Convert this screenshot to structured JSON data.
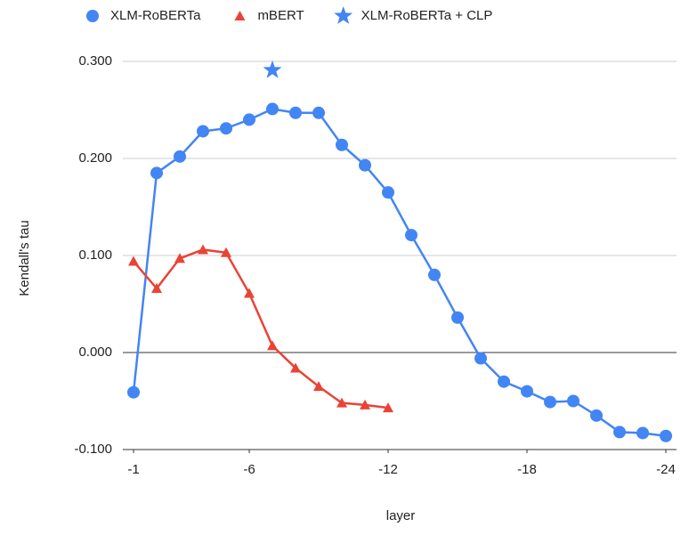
{
  "chart_data": {
    "type": "line",
    "legend": "top",
    "xlabel": "layer",
    "ylabel": "Kendall's tau",
    "xlim": [
      -1,
      -24
    ],
    "xticks": [
      -1,
      -6,
      -12,
      -18,
      -24
    ],
    "ylim": [
      -0.1,
      0.3
    ],
    "yticks": [
      {
        "value": -0.1,
        "label": "-0.100"
      },
      {
        "value": 0,
        "label": "0.000"
      },
      {
        "value": 0.1,
        "label": "0.100"
      },
      {
        "value": 0.2,
        "label": "0.200"
      },
      {
        "value": 0.3,
        "label": "0.300"
      }
    ],
    "grid": true,
    "series": [
      {
        "name": "XLM-RoBERTa",
        "color": "#4285f4",
        "marker": "circle",
        "line": true,
        "x": [
          -1,
          -2,
          -3,
          -4,
          -5,
          -6,
          -7,
          -8,
          -9,
          -10,
          -11,
          -12,
          -13,
          -14,
          -15,
          -16,
          -17,
          -18,
          -19,
          -20,
          -21,
          -22,
          -23,
          -24
        ],
        "values": [
          -0.041,
          0.185,
          0.202,
          0.228,
          0.231,
          0.24,
          0.251,
          0.247,
          0.247,
          0.214,
          0.193,
          0.165,
          0.121,
          0.08,
          0.036,
          -0.006,
          -0.03,
          -0.04,
          -0.051,
          -0.05,
          -0.065,
          -0.082,
          -0.083,
          -0.086
        ]
      },
      {
        "name": "mBERT",
        "color": "#ea4335",
        "marker": "triangle",
        "line": true,
        "x": [
          -1,
          -2,
          -3,
          -4,
          -5,
          -6,
          -7,
          -8,
          -9,
          -10,
          -11,
          -12
        ],
        "values": [
          0.094,
          0.066,
          0.097,
          0.106,
          0.103,
          0.061,
          0.007,
          -0.016,
          -0.035,
          -0.052,
          -0.054,
          -0.057
        ]
      },
      {
        "name": "XLM-RoBERTa + CLP",
        "color": "#4285f4",
        "marker": "star",
        "line": false,
        "x": [
          -7
        ],
        "values": [
          0.291
        ]
      }
    ]
  }
}
